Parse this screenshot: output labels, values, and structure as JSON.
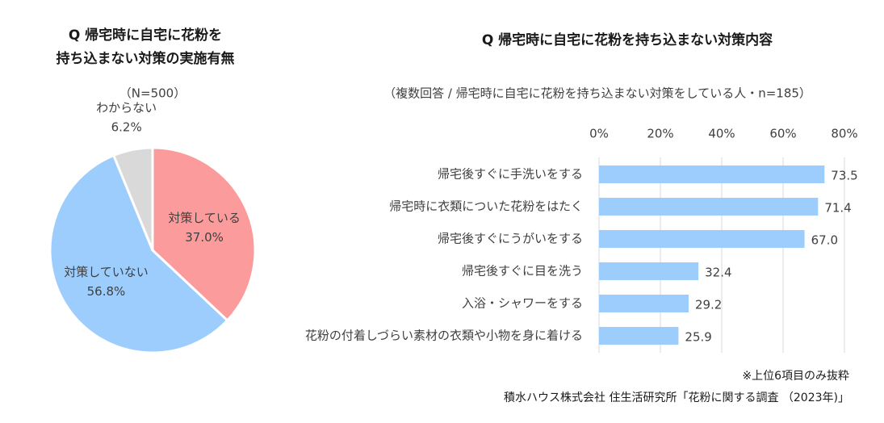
{
  "chart_data": [
    {
      "type": "pie",
      "title": [
        "Q 帰宅時に自宅に花粉を",
        "持ち込まない対策の実施有無"
      ],
      "subtitle": "（N=500）",
      "categories": [
        "対策している",
        "対策していない",
        "わからない"
      ],
      "values": [
        37.0,
        56.8,
        6.2
      ],
      "value_labels": [
        "37.0%",
        "56.8%",
        "6.2%"
      ],
      "colors": [
        "#fb9b9b",
        "#9dcdfd",
        "#d9d9d9"
      ]
    },
    {
      "type": "hbar",
      "title": "Q 帰宅時に自宅に花粉を持ち込まない対策内容",
      "subtitle": "（複数回答 / 帰宅時に自宅に花粉を持ち込まない対策をしている人・n=185）",
      "categories": [
        "帰宅後すぐに手洗いをする",
        "帰宅時に衣類についた花粉をはたく",
        "帰宅後すぐにうがいをする",
        "帰宅後すぐに目を洗う",
        "入浴・シャワーをする",
        "花粉の付着しづらい素材の衣類や小物を身に着ける"
      ],
      "values": [
        73.5,
        71.4,
        67.0,
        32.4,
        29.2,
        25.9
      ],
      "value_labels": [
        "73.5",
        "71.4",
        "67.0",
        "32.4",
        "29.2",
        "25.9"
      ],
      "color": "#9dcdfd",
      "xlim": [
        0,
        80
      ],
      "xticks": [
        {
          "value": 0,
          "label": "0%"
        },
        {
          "value": 20,
          "label": "20%"
        },
        {
          "value": 40,
          "label": "40%"
        },
        {
          "value": 60,
          "label": "60%"
        },
        {
          "value": 80,
          "label": "80%"
        }
      ],
      "grid": true
    }
  ],
  "notes": [
    "※上位6項目のみ抜粋",
    "積水ハウス株式会社 住生活研究所「花粉に関する調査 （2023年)」"
  ]
}
